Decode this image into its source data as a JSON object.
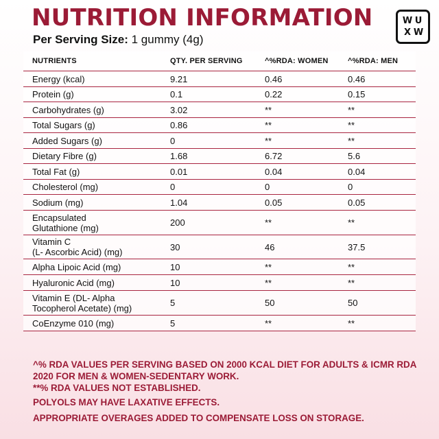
{
  "title": "NUTRITION INFORMATION",
  "serving": {
    "label": "Per Serving Size:",
    "value": " 1 gummy (4g)"
  },
  "logo": {
    "letters": [
      "W",
      "U",
      "X",
      "W"
    ]
  },
  "table": {
    "headers": [
      "NUTRIENTS",
      "QTY. PER SERVING",
      "^%RDA: WOMEN",
      "^%RDA: MEN"
    ],
    "rows": [
      {
        "nutrient": "Energy (kcal)",
        "qty": "9.21",
        "women": "0.46",
        "men": "0.46"
      },
      {
        "nutrient": "Protein (g)",
        "qty": "0.1",
        "women": "0.22",
        "men": "0.15"
      },
      {
        "nutrient": "Carbohydrates (g)",
        "qty": "3.02",
        "women": "**",
        "men": "**"
      },
      {
        "nutrient": "Total Sugars (g)",
        "qty": "0.86",
        "women": "**",
        "men": "**"
      },
      {
        "nutrient": "Added Sugars (g)",
        "qty": "0",
        "women": "**",
        "men": "**"
      },
      {
        "nutrient": "Dietary Fibre (g)",
        "qty": "1.68",
        "women": "6.72",
        "men": "5.6"
      },
      {
        "nutrient": "Total Fat (g)",
        "qty": "0.01",
        "women": "0.04",
        "men": "0.04"
      },
      {
        "nutrient": "Cholesterol (mg)",
        "qty": "0",
        "women": "0",
        "men": "0"
      },
      {
        "nutrient": "Sodium (mg)",
        "qty": "1.04",
        "women": "0.05",
        "men": "0.05"
      },
      {
        "nutrient": "Encapsulated\nGlutathione (mg)",
        "qty": "200",
        "women": "**",
        "men": "**"
      },
      {
        "nutrient": "Vitamin C\n(L- Ascorbic Acid) (mg)",
        "qty": "30",
        "women": "46",
        "men": "37.5"
      },
      {
        "nutrient": "Alpha Lipoic Acid (mg)",
        "qty": "10",
        "women": "**",
        "men": "**"
      },
      {
        "nutrient": "Hyaluronic Acid (mg)",
        "qty": "10",
        "women": "**",
        "men": "**"
      },
      {
        "nutrient": "Vitamin E (DL- Alpha\nTocopherol Acetate) (mg)",
        "qty": "5",
        "women": "50",
        "men": "50"
      },
      {
        "nutrient": "CoEnzyme 010 (mg)",
        "qty": "5",
        "women": "**",
        "men": "**"
      }
    ]
  },
  "footnotes": [
    "^% RDA VALUES PER SERVING BASED ON 2000 KCAL DIET FOR ADULTS & ICMR RDA 2020 FOR MEN & WOMEN-SEDENTARY WORK.",
    "**% RDA VALUES NOT ESTABLISHED.",
    "POLYOLS MAY HAVE LAXATIVE EFFECTS.",
    "APPROPRIATE OVERAGES ADDED TO COMPENSATE LOSS ON STORAGE."
  ]
}
